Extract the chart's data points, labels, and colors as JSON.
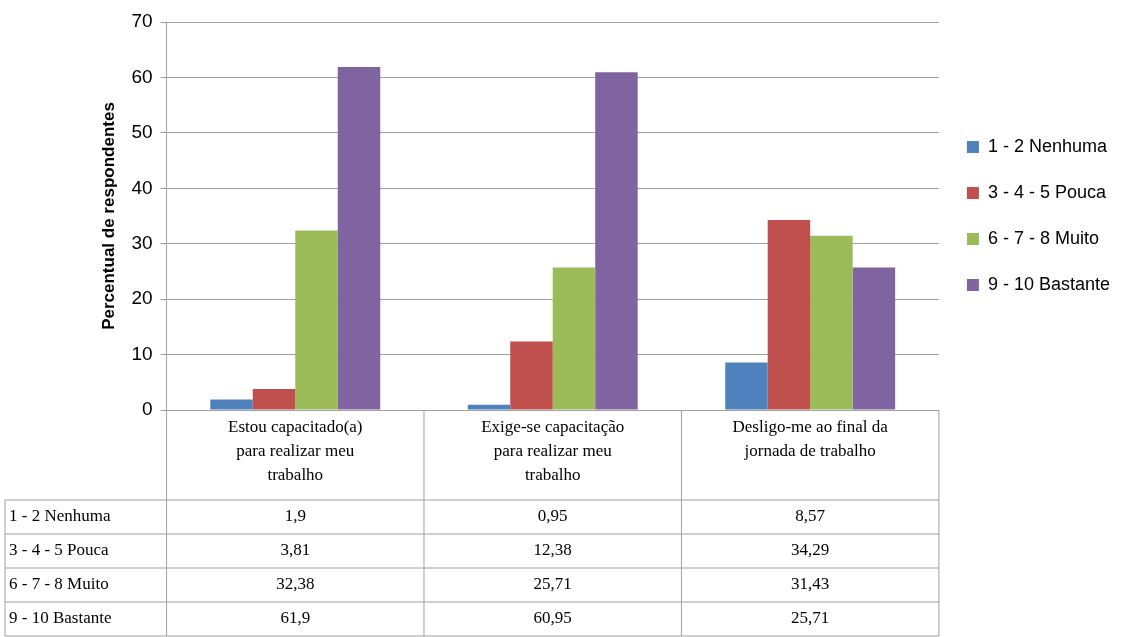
{
  "chart_data": {
    "type": "bar",
    "ylabel": "Percentual de respondentes",
    "categories": [
      "Estou capacitado(a) para realizar meu trabalho",
      "Exige-se capacitação para realizar meu trabalho",
      "Desligo-me ao final da jornada de trabalho"
    ],
    "series": [
      {
        "name": "1 - 2 Nenhuma",
        "color": "#4f81bd",
        "values": [
          1.9,
          0.95,
          8.57
        ],
        "value_labels": [
          "1,9",
          "0,95",
          "8,57"
        ]
      },
      {
        "name": "3 - 4 - 5 Pouca",
        "color": "#c0504d",
        "values": [
          3.81,
          12.38,
          34.29
        ],
        "value_labels": [
          "3,81",
          "12,38",
          "34,29"
        ]
      },
      {
        "name": "6 - 7 - 8 Muito",
        "color": "#9bbb59",
        "values": [
          32.38,
          25.71,
          31.43
        ],
        "value_labels": [
          "32,38",
          "25,71",
          "31,43"
        ]
      },
      {
        "name": "9 - 10 Bastante",
        "color": "#8064a2",
        "values": [
          61.9,
          60.95,
          25.71
        ],
        "value_labels": [
          "61,9",
          "60,95",
          "25,71"
        ]
      }
    ],
    "ylim": [
      0,
      70
    ],
    "yticks": [
      0,
      10,
      20,
      30,
      40,
      50,
      60,
      70
    ],
    "grid": "y",
    "legend": "right"
  }
}
